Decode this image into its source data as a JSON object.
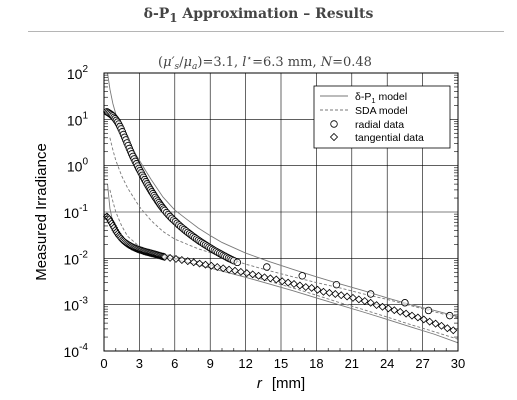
{
  "header": {
    "title_prefix": "δ-P",
    "title_sub": "1",
    "title_suffix": " Approximation – Results"
  },
  "subtitle": {
    "paren_open": "(",
    "mu_s_prime": "μ′",
    "mu_s_sub": "s",
    "slash": "/",
    "mu_a": "μ",
    "mu_a_sub": "a",
    "paren_close": ")=3.1, ",
    "lstar": "l",
    "lstar_sup": "⋆",
    "lstar_value": "=6.3 mm, ",
    "n_symbol": "N",
    "n_value": "=0.48"
  },
  "chart_data": {
    "type": "scatter",
    "xlabel_var": "r",
    "xlabel_unit": "[mm]",
    "ylabel": "Measured Irradiance",
    "xlim": [
      0,
      30
    ],
    "ylim": [
      0.0001,
      100
    ],
    "y_scale": "log",
    "x_ticks": [
      0,
      3,
      6,
      9,
      12,
      15,
      18,
      21,
      24,
      27,
      30
    ],
    "y_ticks": [
      {
        "value": 0.0001,
        "base": "10",
        "exp": "-4"
      },
      {
        "value": 0.001,
        "base": "10",
        "exp": "-3"
      },
      {
        "value": 0.01,
        "base": "10",
        "exp": "-2"
      },
      {
        "value": 0.1,
        "base": "10",
        "exp": "-1"
      },
      {
        "value": 1,
        "base": "10",
        "exp": "0"
      },
      {
        "value": 10,
        "base": "10",
        "exp": "1"
      },
      {
        "value": 100,
        "base": "10",
        "exp": "2"
      }
    ],
    "grid": true,
    "legend_position": "top-right",
    "legend": [
      {
        "label_main": "δ-P",
        "label_sub": "1",
        "label_tail": " model",
        "style": "solid-line"
      },
      {
        "label_main": "SDA model",
        "label_sub": "",
        "label_tail": "",
        "style": "dashed-line"
      },
      {
        "label_main": "radial data",
        "label_sub": "",
        "label_tail": "",
        "style": "circle"
      },
      {
        "label_main": "tangential data",
        "label_sub": "",
        "label_tail": "",
        "style": "diamond"
      }
    ],
    "series": [
      {
        "key": "dp1_radial",
        "style": "solid-line",
        "x": [
          0.3,
          0.5,
          0.75,
          1,
          1.5,
          2,
          2.5,
          3,
          3.5,
          4,
          5,
          6,
          7,
          8,
          9,
          10,
          12,
          14,
          16,
          18,
          20,
          22,
          24,
          26,
          28,
          30
        ],
        "y": [
          100,
          45,
          22,
          13,
          6.5,
          3.6,
          2.1,
          1.3,
          0.8,
          0.5,
          0.21,
          0.11,
          0.07,
          0.045,
          0.031,
          0.022,
          0.013,
          0.0085,
          0.0058,
          0.004,
          0.0028,
          0.002,
          0.0014,
          0.001,
          0.00075,
          0.00055
        ]
      },
      {
        "key": "dp1_tangential",
        "style": "solid-line",
        "x": [
          0.3,
          0.5,
          0.75,
          1,
          1.5,
          2,
          2.5,
          3,
          4,
          5,
          6,
          8,
          10,
          12,
          14,
          16,
          18,
          20,
          22,
          24,
          26,
          28,
          30
        ],
        "y": [
          0.4,
          0.12,
          0.06,
          0.038,
          0.023,
          0.018,
          0.016,
          0.0145,
          0.0125,
          0.011,
          0.0095,
          0.0072,
          0.0053,
          0.0039,
          0.0028,
          0.002,
          0.0014,
          0.00098,
          0.00069,
          0.00048,
          0.00033,
          0.00023,
          0.00015
        ]
      },
      {
        "key": "sda_radial",
        "style": "dashed-line",
        "x": [
          0.5,
          0.75,
          1,
          1.5,
          2,
          3,
          4,
          5,
          6,
          8,
          10,
          12,
          14,
          16,
          18,
          20,
          22,
          24,
          26,
          28,
          30
        ],
        "y": [
          4,
          2.2,
          1.3,
          0.6,
          0.33,
          0.13,
          0.065,
          0.038,
          0.026,
          0.016,
          0.011,
          0.0075,
          0.0054,
          0.004,
          0.003,
          0.0023,
          0.0017,
          0.0013,
          0.00095,
          0.0007,
          0.00052
        ]
      },
      {
        "key": "sda_tangential",
        "style": "dashed-line",
        "x": [
          0.5,
          0.75,
          1,
          1.5,
          2,
          3,
          4,
          5,
          6,
          8,
          10,
          12,
          14,
          16,
          18,
          20,
          22,
          24,
          26,
          28,
          30
        ],
        "y": [
          0.3,
          0.17,
          0.1,
          0.05,
          0.03,
          0.018,
          0.014,
          0.0125,
          0.011,
          0.0085,
          0.0062,
          0.0045,
          0.0032,
          0.0023,
          0.0016,
          0.0011,
          0.00078,
          0.00054,
          0.00037,
          0.00026,
          0.00018
        ]
      },
      {
        "key": "radial_data",
        "style": "circle",
        "x": [
          0.25,
          0.35,
          0.45,
          0.55,
          0.65,
          0.75,
          0.85,
          0.95,
          1.05,
          1.15,
          1.25,
          1.35,
          1.45,
          1.55,
          1.65,
          1.75,
          1.85,
          1.95,
          2.05,
          2.15,
          2.25,
          2.35,
          2.45,
          2.55,
          2.65,
          2.75,
          2.85,
          2.95,
          3.05,
          3.15,
          3.25,
          3.35,
          3.45,
          3.55,
          3.65,
          3.75,
          3.85,
          3.95,
          4.05,
          4.15,
          4.25,
          4.35,
          4.45,
          4.55,
          4.65,
          4.75,
          4.85,
          4.95,
          5.05,
          5.15,
          5.3,
          5.45,
          5.6,
          5.75,
          5.9,
          6.05,
          6.2,
          6.35,
          6.5,
          6.65,
          6.8,
          6.95,
          7.1,
          7.25,
          7.4,
          7.55,
          7.7,
          7.85,
          8.0,
          8.15,
          8.3,
          8.45,
          8.6,
          8.75,
          8.9,
          9.05,
          9.2,
          9.35,
          9.5,
          9.65,
          9.8,
          9.95,
          10.1,
          10.25,
          10.4,
          10.55,
          10.7,
          10.85,
          11.0,
          11.3,
          13.8,
          16.8,
          19.7,
          22.6,
          25.5,
          27.5,
          29.3
        ],
        "y": [
          14.5,
          14,
          13.5,
          13,
          12.4,
          11.8,
          11,
          10.3,
          9.5,
          8.7,
          7.9,
          7,
          6.2,
          5.4,
          4.7,
          4.1,
          3.6,
          3.1,
          2.7,
          2.35,
          2.05,
          1.8,
          1.58,
          1.4,
          1.24,
          1.1,
          0.98,
          0.87,
          0.78,
          0.7,
          0.62,
          0.56,
          0.5,
          0.45,
          0.405,
          0.365,
          0.33,
          0.3,
          0.272,
          0.248,
          0.226,
          0.206,
          0.189,
          0.173,
          0.159,
          0.146,
          0.135,
          0.125,
          0.116,
          0.108,
          0.097,
          0.088,
          0.08,
          0.073,
          0.067,
          0.062,
          0.057,
          0.0525,
          0.0485,
          0.045,
          0.0418,
          0.039,
          0.0363,
          0.0339,
          0.0317,
          0.0297,
          0.0278,
          0.0261,
          0.0245,
          0.0231,
          0.0218,
          0.0206,
          0.0195,
          0.0184,
          0.0174,
          0.0165,
          0.0156,
          0.0148,
          0.0141,
          0.0134,
          0.0128,
          0.0122,
          0.0116,
          0.0111,
          0.0106,
          0.0101,
          0.0097,
          0.0093,
          0.0089,
          0.0082,
          0.0065,
          0.0042,
          0.0027,
          0.0017,
          0.0011,
          0.00075,
          0.00058
        ]
      },
      {
        "key": "tangential_data",
        "style": "diamond",
        "x": [
          0.25,
          0.35,
          0.45,
          0.55,
          0.65,
          0.75,
          0.85,
          0.95,
          1.05,
          1.15,
          1.25,
          1.35,
          1.45,
          1.55,
          1.65,
          1.75,
          1.85,
          1.95,
          2.05,
          2.15,
          2.25,
          2.35,
          2.45,
          2.55,
          2.65,
          2.75,
          2.85,
          2.95,
          3.05,
          3.15,
          3.25,
          3.35,
          3.45,
          3.55,
          3.65,
          3.75,
          3.85,
          3.95,
          4.05,
          4.15,
          4.25,
          4.35,
          4.45,
          4.55,
          4.65,
          4.75,
          4.85,
          4.95,
          5.05,
          5.15,
          5.6,
          6.1,
          6.6,
          7.1,
          7.6,
          8.1,
          8.6,
          9.1,
          9.6,
          10.1,
          10.6,
          11.1,
          11.6,
          12.1,
          12.6,
          13.1,
          13.6,
          14.1,
          14.6,
          15.1,
          15.6,
          16.1,
          16.6,
          17.1,
          17.6,
          18.1,
          18.6,
          19.1,
          19.6,
          20.1,
          20.6,
          21.1,
          21.6,
          22.1,
          22.6,
          23.1,
          23.6,
          24.1,
          24.6,
          25.1,
          25.6,
          26.1,
          26.6,
          27.1,
          27.6,
          28.1,
          28.6,
          29.1,
          29.6
        ],
        "y": [
          0.08,
          0.075,
          0.07,
          0.063,
          0.057,
          0.051,
          0.046,
          0.041,
          0.037,
          0.034,
          0.031,
          0.029,
          0.027,
          0.025,
          0.0238,
          0.0226,
          0.0216,
          0.0207,
          0.0199,
          0.0192,
          0.0186,
          0.018,
          0.0175,
          0.017,
          0.0166,
          0.0162,
          0.0158,
          0.0155,
          0.0152,
          0.0149,
          0.0146,
          0.0143,
          0.0141,
          0.0138,
          0.0136,
          0.0134,
          0.0132,
          0.013,
          0.0128,
          0.0126,
          0.0124,
          0.0122,
          0.012,
          0.0118,
          0.0116,
          0.0114,
          0.0112,
          0.011,
          0.0109,
          0.0107,
          0.0102,
          0.0097,
          0.0092,
          0.0087,
          0.0082,
          0.0077,
          0.0073,
          0.0069,
          0.0065,
          0.0061,
          0.0057,
          0.0054,
          0.0051,
          0.0048,
          0.0045,
          0.0042,
          0.0039,
          0.0037,
          0.0035,
          0.0032,
          0.003,
          0.0028,
          0.0026,
          0.0024,
          0.0023,
          0.0021,
          0.0019,
          0.0018,
          0.0017,
          0.0016,
          0.0015,
          0.0014,
          0.0013,
          0.0012,
          0.0011,
          0.00098,
          0.0009,
          0.00083,
          0.00076,
          0.0007,
          0.00064,
          0.00058,
          0.00053,
          0.00048,
          0.00043,
          0.00039,
          0.00035,
          0.00031,
          0.00028
        ]
      }
    ]
  }
}
